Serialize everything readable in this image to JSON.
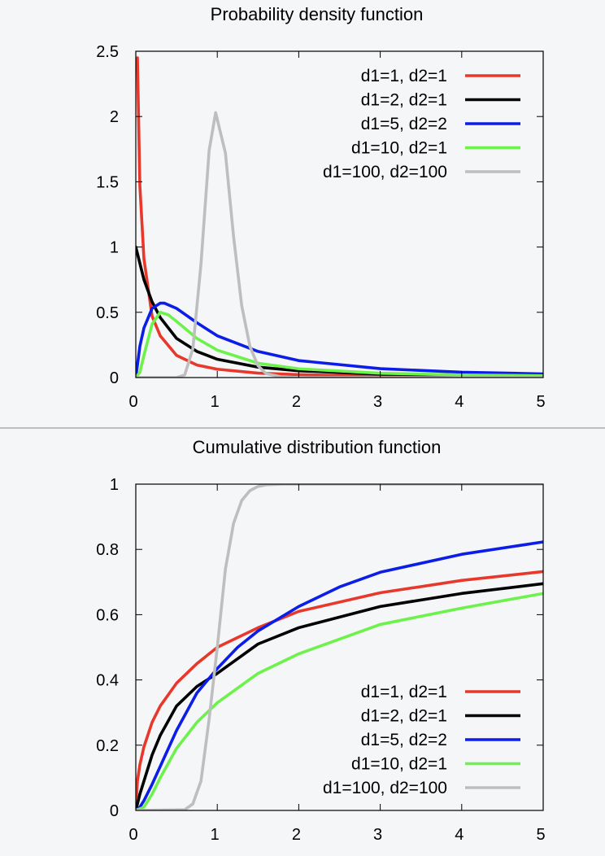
{
  "chart_data": [
    {
      "type": "line",
      "title": "Probability density function",
      "xlim": [
        0,
        5
      ],
      "ylim": [
        0,
        2.5
      ],
      "xticks": [
        0,
        1,
        2,
        3,
        4,
        5
      ],
      "xtick_labels": [
        "0",
        "1",
        "2",
        "3",
        "4",
        "5"
      ],
      "yticks": [
        0,
        0.5,
        1,
        1.5,
        2,
        2.5
      ],
      "ytick_labels": [
        "0",
        "0.5",
        "1",
        "1.5",
        "2",
        "2.5"
      ],
      "legend_position": "top-right",
      "grid": false,
      "series": [
        {
          "name": "d1=1, d2=1",
          "color": "#e8382b",
          "x": [
            0.02,
            0.05,
            0.1,
            0.2,
            0.3,
            0.5,
            0.75,
            1,
            1.5,
            2,
            3,
            4,
            5
          ],
          "y": [
            2.45,
            1.47,
            0.91,
            0.47,
            0.32,
            0.17,
            0.096,
            0.064,
            0.034,
            0.022,
            0.011,
            0.0071,
            0.0049
          ]
        },
        {
          "name": "d1=2, d2=1",
          "color": "#000000",
          "x": [
            0,
            0.1,
            0.2,
            0.3,
            0.5,
            0.75,
            1,
            1.5,
            2,
            3,
            4,
            5
          ],
          "y": [
            1.0,
            0.75,
            0.58,
            0.46,
            0.3,
            0.2,
            0.14,
            0.08,
            0.052,
            0.026,
            0.016,
            0.011
          ]
        },
        {
          "name": "d1=5, d2=2",
          "color": "#0b1de6",
          "x": [
            0,
            0.05,
            0.1,
            0.2,
            0.3,
            0.35,
            0.5,
            0.75,
            1,
            1.5,
            2,
            3,
            4,
            5
          ],
          "y": [
            0,
            0.24,
            0.38,
            0.53,
            0.57,
            0.57,
            0.53,
            0.42,
            0.32,
            0.2,
            0.13,
            0.068,
            0.041,
            0.028
          ]
        },
        {
          "name": "d1=10, d2=1",
          "color": "#6cf24a",
          "x": [
            0,
            0.05,
            0.1,
            0.2,
            0.3,
            0.4,
            0.5,
            0.75,
            1,
            1.5,
            2,
            3,
            4,
            5
          ],
          "y": [
            0,
            0.04,
            0.17,
            0.41,
            0.5,
            0.48,
            0.43,
            0.3,
            0.21,
            0.11,
            0.067,
            0.033,
            0.02,
            0.014
          ]
        },
        {
          "name": "d1=100, d2=100",
          "color": "#bebebe",
          "x": [
            0,
            0.5,
            0.6,
            0.7,
            0.8,
            0.9,
            0.98,
            1.1,
            1.2,
            1.3,
            1.4,
            1.5,
            1.6,
            1.8,
            2,
            3,
            5
          ],
          "y": [
            0,
            0.0,
            0.02,
            0.22,
            0.87,
            1.74,
            2.03,
            1.72,
            1.08,
            0.55,
            0.24,
            0.09,
            0.03,
            0.003,
            0,
            0,
            0
          ]
        }
      ]
    },
    {
      "type": "line",
      "title": "Cumulative distribution function",
      "xlim": [
        0,
        5
      ],
      "ylim": [
        0,
        1
      ],
      "xticks": [
        0,
        1,
        2,
        3,
        4,
        5
      ],
      "xtick_labels": [
        "0",
        "1",
        "2",
        "3",
        "4",
        "5"
      ],
      "yticks": [
        0,
        0.2,
        0.4,
        0.6,
        0.8,
        1
      ],
      "ytick_labels": [
        "0",
        "0.2",
        "0.4",
        "0.6",
        "0.8",
        "1"
      ],
      "legend_position": "bottom-right",
      "grid": false,
      "series": [
        {
          "name": "d1=1, d2=1",
          "color": "#e8382b",
          "x": [
            0,
            0.02,
            0.05,
            0.1,
            0.2,
            0.3,
            0.5,
            0.75,
            1,
            1.5,
            2,
            3,
            4,
            5
          ],
          "y": [
            0,
            0.09,
            0.14,
            0.195,
            0.27,
            0.32,
            0.39,
            0.45,
            0.5,
            0.56,
            0.61,
            0.667,
            0.705,
            0.732
          ]
        },
        {
          "name": "d1=2, d2=1",
          "color": "#000000",
          "x": [
            0,
            0.05,
            0.1,
            0.2,
            0.3,
            0.5,
            0.75,
            1,
            1.5,
            2,
            3,
            4,
            5
          ],
          "y": [
            0,
            0.05,
            0.09,
            0.17,
            0.23,
            0.32,
            0.38,
            0.42,
            0.51,
            0.56,
            0.625,
            0.665,
            0.695
          ]
        },
        {
          "name": "d1=5, d2=2",
          "color": "#0b1de6",
          "x": [
            0,
            0.05,
            0.1,
            0.2,
            0.3,
            0.5,
            0.75,
            1,
            1.25,
            1.5,
            2,
            2.5,
            3,
            4,
            5
          ],
          "y": [
            0,
            0.01,
            0.03,
            0.08,
            0.135,
            0.245,
            0.36,
            0.435,
            0.5,
            0.55,
            0.625,
            0.685,
            0.73,
            0.785,
            0.823
          ]
        },
        {
          "name": "d1=10, d2=1",
          "color": "#6cf24a",
          "x": [
            0,
            0.1,
            0.2,
            0.3,
            0.5,
            0.75,
            1,
            1.5,
            2,
            3,
            4,
            5
          ],
          "y": [
            0,
            0.01,
            0.05,
            0.1,
            0.19,
            0.27,
            0.33,
            0.42,
            0.48,
            0.57,
            0.62,
            0.665
          ]
        },
        {
          "name": "d1=100, d2=100",
          "color": "#bebebe",
          "x": [
            0,
            0.6,
            0.7,
            0.8,
            0.9,
            1,
            1.1,
            1.2,
            1.3,
            1.4,
            1.5,
            1.6,
            1.8,
            2,
            5
          ],
          "y": [
            0,
            0.002,
            0.02,
            0.09,
            0.28,
            0.5,
            0.74,
            0.88,
            0.95,
            0.98,
            0.993,
            0.998,
            1,
            1,
            1
          ]
        }
      ]
    }
  ]
}
